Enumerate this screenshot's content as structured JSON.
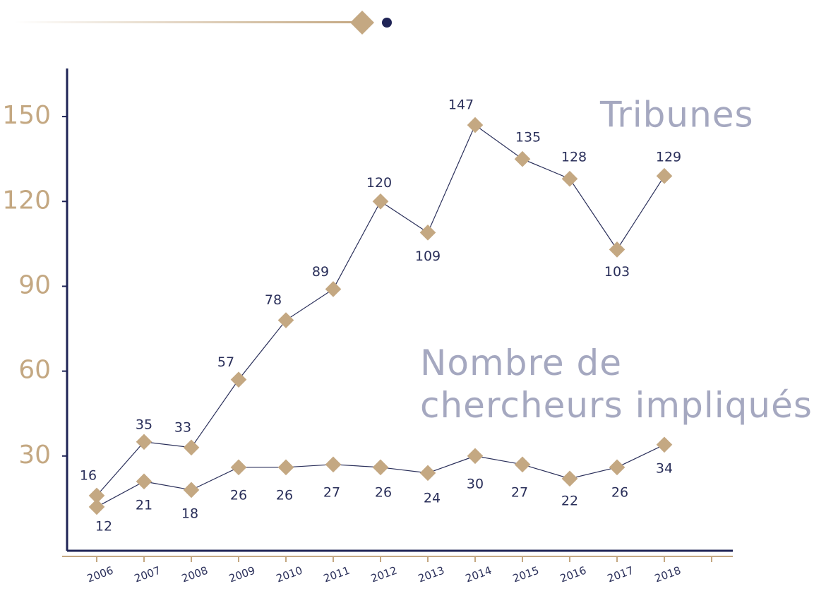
{
  "chart_data": {
    "type": "line",
    "categories": [
      "2006",
      "2007",
      "2008",
      "2009",
      "2010",
      "2011",
      "2012",
      "2013",
      "2014",
      "2015",
      "2016",
      "2017",
      "2018"
    ],
    "series": [
      {
        "name": "Tribunes",
        "color": "#c4a882",
        "values": [
          16,
          35,
          33,
          57,
          78,
          89,
          120,
          109,
          147,
          135,
          128,
          103,
          129
        ]
      },
      {
        "name": "Nombre de chercheurs impliqués",
        "color": "#c4a882",
        "values": [
          12,
          21,
          18,
          26,
          26,
          27,
          26,
          24,
          30,
          27,
          22,
          26,
          34
        ]
      }
    ],
    "ylim": [
      -3.5,
      167
    ],
    "yticks": [
      30,
      60,
      90,
      120,
      150
    ]
  }
}
